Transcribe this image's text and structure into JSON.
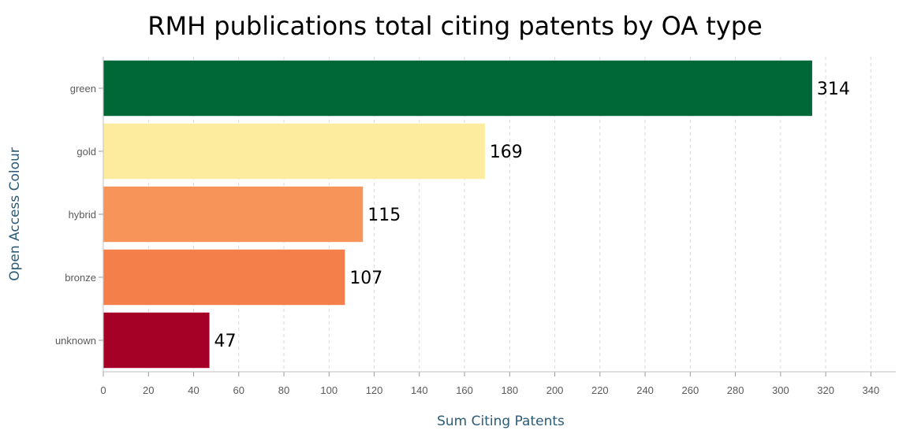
{
  "chart_data": {
    "type": "bar",
    "orientation": "horizontal",
    "title": "RMH publications total citing patents by OA type",
    "xlabel": "Sum Citing Patents",
    "ylabel": "Open Access Colour",
    "categories": [
      "green",
      "gold",
      "hybrid",
      "bronze",
      "unknown"
    ],
    "values": [
      314,
      169,
      115,
      107,
      47
    ],
    "data_labels": [
      "314",
      "169",
      "115",
      "107",
      "47"
    ],
    "colors": [
      "#006837",
      "#fdec9d",
      "#f79459",
      "#f57f4a",
      "#a50026"
    ],
    "xlim": [
      0,
      350
    ],
    "xticks": [
      0,
      20,
      40,
      60,
      80,
      100,
      120,
      140,
      160,
      180,
      200,
      220,
      240,
      260,
      280,
      300,
      320,
      340
    ],
    "grid": true,
    "legend": "none"
  }
}
